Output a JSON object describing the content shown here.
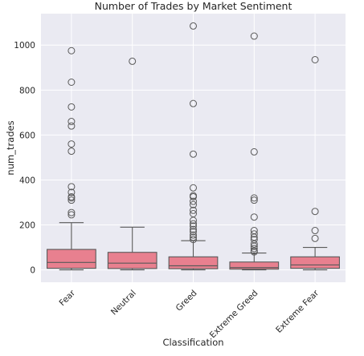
{
  "chart_data": {
    "type": "boxplot",
    "title": "Number of Trades by Market Sentiment",
    "xlabel": "Classification",
    "ylabel": "num_trades",
    "categories": [
      "Fear",
      "Neutral",
      "Greed",
      "Extreme Greed",
      "Extreme Fear"
    ],
    "y_ticks": [
      0,
      200,
      400,
      600,
      800,
      1000
    ],
    "ylim": [
      -55,
      1140
    ],
    "grid": true,
    "box_color": "#e8808f",
    "edge_color": "#595959",
    "background_color": "#eaeaf2",
    "boxes": [
      {
        "category": "Fear",
        "whisker_low": 0,
        "q1": 7,
        "median": 33,
        "q3": 91,
        "whisker_high": 210,
        "outliers": [
          245,
          255,
          310,
          320,
          325,
          345,
          370,
          528,
          560,
          640,
          660,
          725,
          835,
          975
        ]
      },
      {
        "category": "Neutral",
        "whisker_low": 0,
        "q1": 6,
        "median": 30,
        "q3": 78,
        "whisker_high": 190,
        "outliers": [
          928
        ]
      },
      {
        "category": "Greed",
        "whisker_low": 0,
        "q1": 5,
        "median": 18,
        "q3": 58,
        "whisker_high": 130,
        "outliers": [
          135,
          145,
          155,
          170,
          180,
          195,
          205,
          220,
          250,
          265,
          290,
          305,
          325,
          330,
          365,
          515,
          740,
          1085
        ]
      },
      {
        "category": "Extreme Greed",
        "whisker_low": 0,
        "q1": 3,
        "median": 10,
        "q3": 35,
        "whisker_high": 75,
        "outliers": [
          80,
          85,
          95,
          105,
          115,
          135,
          145,
          160,
          175,
          235,
          310,
          320,
          525,
          1040
        ]
      },
      {
        "category": "Extreme Fear",
        "whisker_low": 0,
        "q1": 7,
        "median": 22,
        "q3": 58,
        "whisker_high": 100,
        "outliers": [
          140,
          175,
          260,
          935
        ]
      }
    ]
  }
}
